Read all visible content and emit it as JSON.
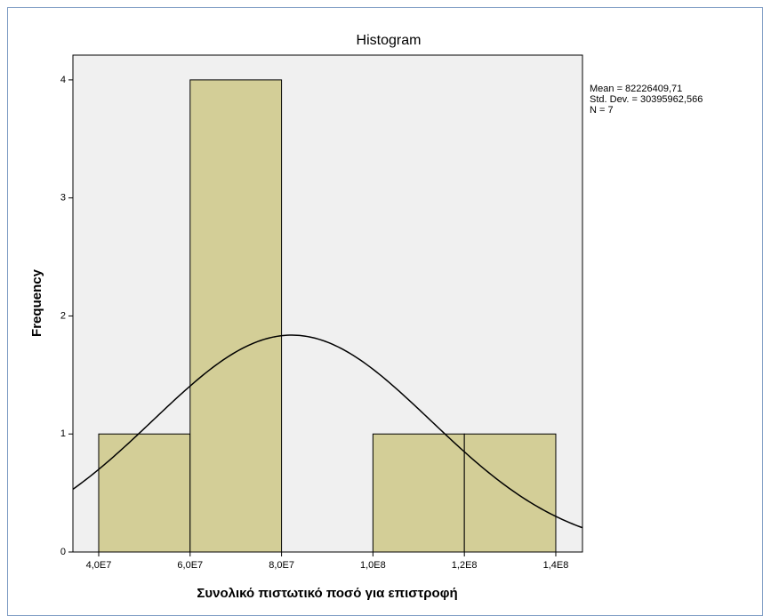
{
  "chart_data": {
    "type": "histogram",
    "title": "Histogram",
    "x_label": "Συνολικό πιστωτικό ποσό για επιστροφή",
    "y_label": "Frequency",
    "bins": [
      40000000,
      60000000,
      80000000,
      100000000,
      120000000,
      140000000
    ],
    "values": [
      1,
      4,
      0,
      1,
      1
    ],
    "color": "#d3ce97",
    "xlim": [
      34360000,
      145840000
    ],
    "ylim": [
      0,
      4.21
    ],
    "xticks": [
      {
        "value": 40000000,
        "label": "4,0E7"
      },
      {
        "value": 60000000,
        "label": "6,0E7"
      },
      {
        "value": 80000000,
        "label": "8,0E7"
      },
      {
        "value": 100000000,
        "label": "1,0E8"
      },
      {
        "value": 120000000,
        "label": "1,2E8"
      },
      {
        "value": 140000000,
        "label": "1,4E8"
      }
    ],
    "yticks": [
      0,
      1,
      2,
      3,
      4
    ],
    "stats": [
      {
        "value": 82226409.71,
        "label": "Mean = 82226409,71"
      },
      {
        "value": 30395962.566,
        "label": "Std. Dev. = 30395962,566"
      },
      {
        "value": 7,
        "label": "N = 7"
      }
    ]
  }
}
